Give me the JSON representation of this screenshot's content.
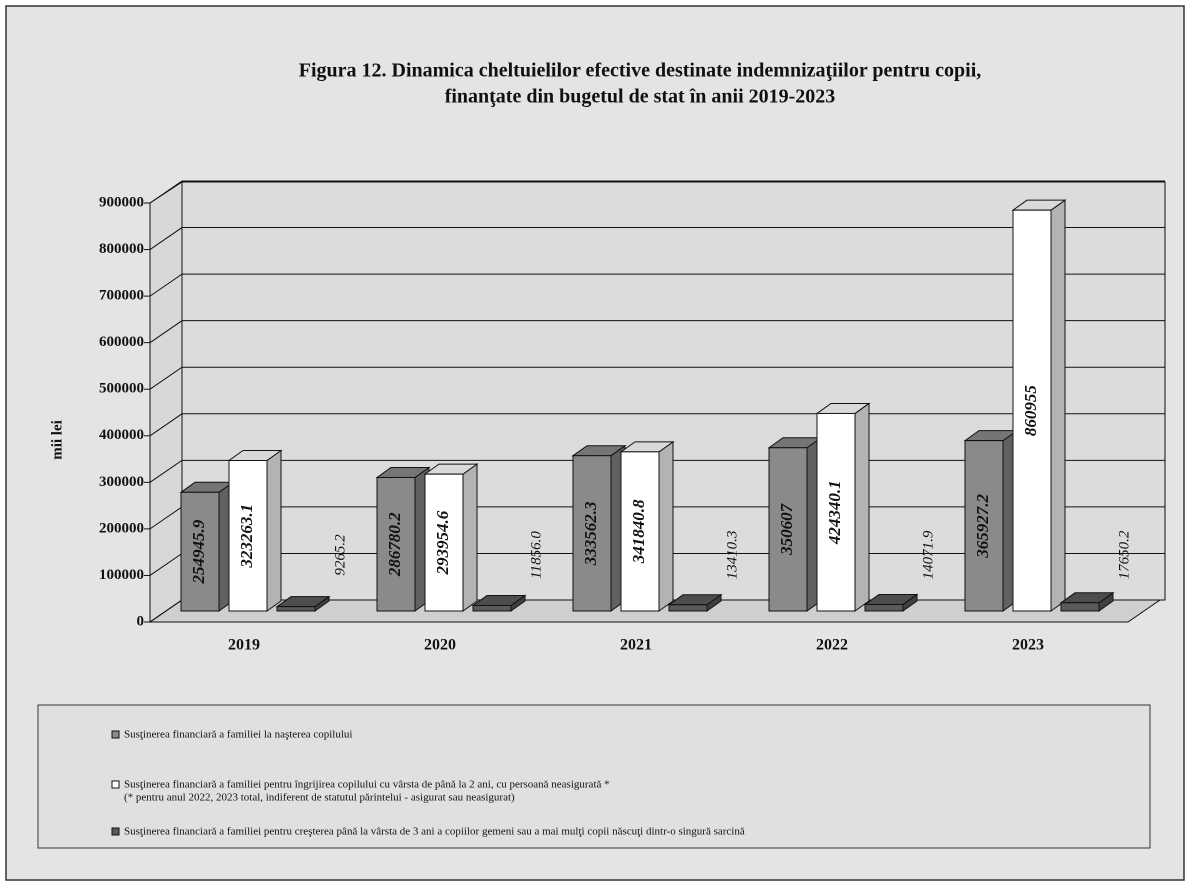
{
  "chart_data": {
    "type": "bar3d",
    "title": [
      "Figura 12. Dinamica cheltuielilor efective destinate indemnizaţiilor pentru copii,",
      "finanţate din bugetul de stat în anii 2019-2023"
    ],
    "y_label": "mii lei",
    "categories": [
      "2019",
      "2020",
      "2021",
      "2022",
      "2023"
    ],
    "series": [
      {
        "name": "Susţinerea financiară a familiei la naşterea copilului",
        "color": "#8a8a8a",
        "values": [
          254945.9,
          286780.2,
          333562.3,
          350607,
          365927.2
        ]
      },
      {
        "name": "Susţinerea financiară a familiei pentru îngrijirea copilului cu vârsta de până la 2 ani, cu persoană neasigurată *",
        "color": "#ffffff",
        "values": [
          323263.1,
          293954.6,
          341840.8,
          424340.1,
          860955
        ]
      },
      {
        "name": "Susţinerea financiară a familiei pentru creşterea până la vârsta de 3 ani a copiilor gemeni sau a mai mulţi copii născuţi dintr-o singură sarcină",
        "color": "#5a5a5a",
        "values": [
          9265.2,
          11856.0,
          13410.3,
          14071.9,
          17650.2
        ],
        "value_labels": [
          "9265.2",
          "11856.0",
          "13410.3",
          "14071.9",
          "17650.2"
        ]
      }
    ],
    "legend_note": "(* pentru anul 2022, 2023 total, indiferent de statutul părintelui - asigurat sau neasigurat)",
    "ylim": [
      0,
      900000
    ],
    "yticks": [
      0,
      100000,
      200000,
      300000,
      400000,
      500000,
      600000,
      700000,
      800000,
      900000
    ],
    "grid": true
  }
}
